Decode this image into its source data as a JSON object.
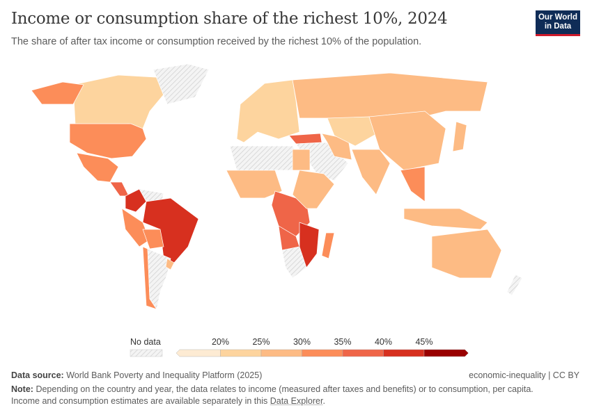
{
  "header": {
    "title": "Income or consumption share of the richest 10%, 2024",
    "subtitle": "The share of after tax income or consumption received by the richest 10% of the population.",
    "logo": "Our World in Data"
  },
  "chart_data": {
    "type": "choropleth-map",
    "title": "Income or consumption share of the richest 10%, 2024",
    "legend": {
      "no_data_label": "No data",
      "ticks": [
        "20%",
        "25%",
        "30%",
        "35%",
        "40%",
        "45%"
      ],
      "bins": [
        {
          "max": 20,
          "color": "#fdebd3"
        },
        {
          "min": 20,
          "max": 25,
          "color": "#fdd49e"
        },
        {
          "min": 25,
          "max": 30,
          "color": "#fdbb84"
        },
        {
          "min": 30,
          "max": 35,
          "color": "#fc8d59"
        },
        {
          "min": 35,
          "max": 40,
          "color": "#ef6548"
        },
        {
          "min": 40,
          "max": 45,
          "color": "#d7301f"
        },
        {
          "min": 45,
          "color": "#990000"
        }
      ],
      "no_data_color": "#eeeeee"
    },
    "regions": [
      {
        "id": "Canada",
        "value": 24
      },
      {
        "id": "United States",
        "value": 31
      },
      {
        "id": "Mexico",
        "value": 33
      },
      {
        "id": "Central America",
        "value": 35
      },
      {
        "id": "Colombia",
        "value": 42
      },
      {
        "id": "Venezuela",
        "value": null
      },
      {
        "id": "Brazil",
        "value": 41
      },
      {
        "id": "Peru",
        "value": 32
      },
      {
        "id": "Bolivia",
        "value": 31
      },
      {
        "id": "Chile",
        "value": 34
      },
      {
        "id": "Argentina",
        "value": null
      },
      {
        "id": "Uruguay",
        "value": 27
      },
      {
        "id": "Greenland",
        "value": null
      },
      {
        "id": "Europe",
        "value": 24
      },
      {
        "id": "Russia",
        "value": 27
      },
      {
        "id": "Turkey",
        "value": 36
      },
      {
        "id": "Middle East",
        "value": null
      },
      {
        "id": "Iran",
        "value": 28
      },
      {
        "id": "Central Asia",
        "value": 23
      },
      {
        "id": "China",
        "value": 28
      },
      {
        "id": "India",
        "value": 25
      },
      {
        "id": "Southeast Asia",
        "value": 30
      },
      {
        "id": "Indonesia",
        "value": 28
      },
      {
        "id": "Japan",
        "value": 25
      },
      {
        "id": "Australia",
        "value": 26
      },
      {
        "id": "North Africa",
        "value": null
      },
      {
        "id": "Egypt",
        "value": 26
      },
      {
        "id": "West Africa",
        "value": 27
      },
      {
        "id": "Central Africa",
        "value": 37
      },
      {
        "id": "East Africa",
        "value": 27
      },
      {
        "id": "Angola / Zambia",
        "value": 38
      },
      {
        "id": "Southern Africa",
        "value": null
      },
      {
        "id": "Mozambique / Zimbabwe",
        "value": 42
      },
      {
        "id": "Madagascar",
        "value": 32
      },
      {
        "id": "Alaska",
        "value": 31
      },
      {
        "id": "New Zealand",
        "value": null
      }
    ]
  },
  "footer": {
    "source_label": "Data source:",
    "source": "World Bank Poverty and Inequality Platform (2025)",
    "right": "economic-inequality | CC BY",
    "note_label": "Note:",
    "note": "Depending on the country and year, the data relates to income (measured after taxes and benefits) or to consumption, per capita.",
    "note2": "Income and consumption estimates are available separately in this ",
    "link": "Data Explorer",
    "note_end": "."
  }
}
